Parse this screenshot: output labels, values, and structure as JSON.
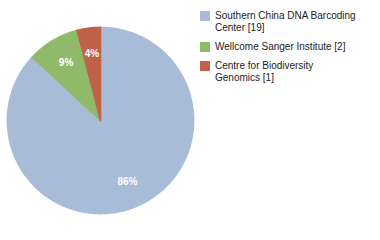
{
  "chart_data": {
    "type": "pie",
    "categories": [
      "Southern China DNA Barcoding\nCenter [19]",
      "Wellcome Sanger Institute [2]",
      "Centre for Biodiversity\nGenomics [1]"
    ],
    "values": [
      86,
      9,
      4
    ],
    "value_labels": [
      "86%",
      "9%",
      "4%"
    ],
    "colors": [
      "#a8bcd8",
      "#8fba6a",
      "#c0624a"
    ],
    "data_labels": true,
    "legend": "right"
  }
}
